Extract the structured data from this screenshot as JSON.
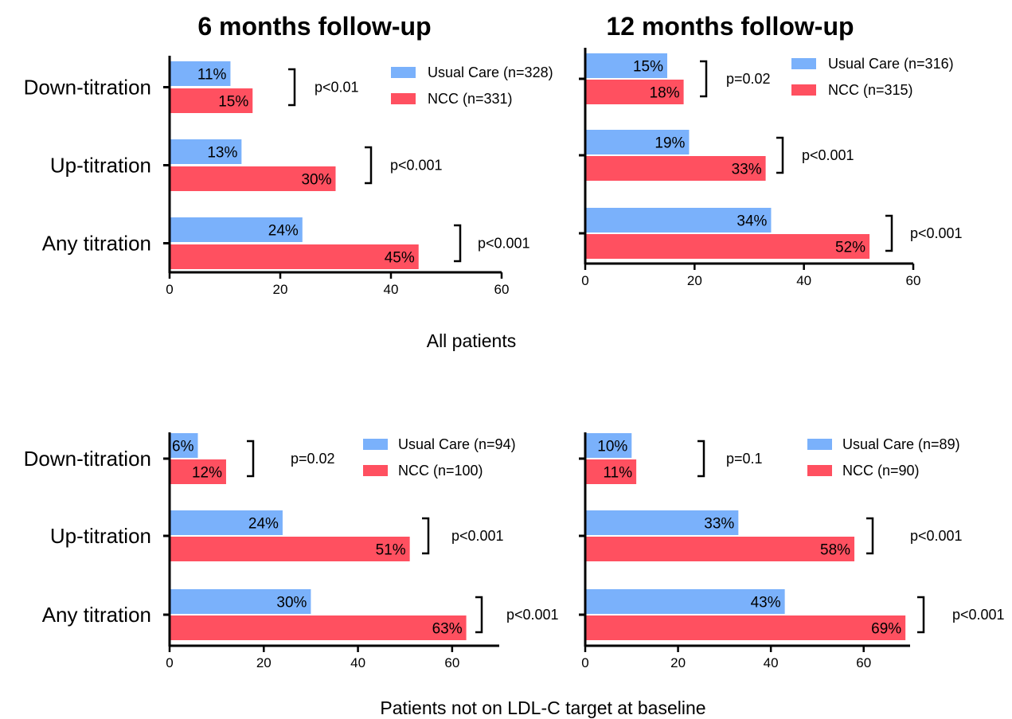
{
  "colors": {
    "usual_care": "#7ab1fb",
    "ncc": "#ff5060",
    "axis": "#000000"
  },
  "section_labels": {
    "top": "All patients",
    "bottom": "Patients not on LDL-C target at baseline"
  },
  "chart_data": [
    {
      "type": "bar",
      "orientation": "horizontal",
      "title": "6 months follow-up",
      "categories": [
        "Down-titration",
        "Up-titration",
        "Any titration"
      ],
      "series": [
        {
          "name": "Usual Care (n=328)",
          "values": [
            11,
            13,
            24
          ],
          "labels": [
            "11%",
            "13%",
            "24%"
          ]
        },
        {
          "name": "NCC (n=331)",
          "values": [
            15,
            30,
            45
          ],
          "labels": [
            "15%",
            "30%",
            "45%"
          ]
        }
      ],
      "p_values": [
        "p<0.01",
        "p<0.001",
        "p<0.001"
      ],
      "xlim": [
        0,
        60
      ],
      "xticks": [
        0,
        20,
        40,
        60
      ],
      "legend_position": "top-right"
    },
    {
      "type": "bar",
      "orientation": "horizontal",
      "title": "12 months follow-up",
      "categories": [
        "Down-titration",
        "Up-titration",
        "Any titration"
      ],
      "series": [
        {
          "name": "Usual Care (n=316)",
          "values": [
            15,
            19,
            34
          ],
          "labels": [
            "15%",
            "19%",
            "34%"
          ]
        },
        {
          "name": "NCC (n=315)",
          "values": [
            18,
            33,
            52
          ],
          "labels": [
            "18%",
            "33%",
            "52%"
          ]
        }
      ],
      "p_values": [
        "p=0.02",
        "p<0.001",
        "p<0.001"
      ],
      "xlim": [
        0,
        60
      ],
      "xticks": [
        0,
        20,
        40,
        60
      ],
      "legend_position": "top-right"
    },
    {
      "type": "bar",
      "orientation": "horizontal",
      "title": "",
      "categories": [
        "Down-titration",
        "Up-titration",
        "Any titration"
      ],
      "series": [
        {
          "name": "Usual Care (n=94)",
          "values": [
            6,
            24,
            30
          ],
          "labels": [
            "6%",
            "24%",
            "30%"
          ]
        },
        {
          "name": "NCC (n=100)",
          "values": [
            12,
            51,
            63
          ],
          "labels": [
            "12%",
            "51%",
            "63%"
          ]
        }
      ],
      "p_values": [
        "p=0.02",
        "p<0.001",
        "p<0.001"
      ],
      "xlim": [
        0,
        70
      ],
      "xticks": [
        0,
        20,
        40,
        60
      ],
      "legend_position": "top-right"
    },
    {
      "type": "bar",
      "orientation": "horizontal",
      "title": "",
      "categories": [
        "Down-titration",
        "Up-titration",
        "Any titration"
      ],
      "series": [
        {
          "name": "Usual Care (n=89)",
          "values": [
            10,
            33,
            43
          ],
          "labels": [
            "10%",
            "33%",
            "43%"
          ]
        },
        {
          "name": "NCC (n=90)",
          "values": [
            11,
            58,
            69
          ],
          "labels": [
            "11%",
            "58%",
            "69%"
          ]
        }
      ],
      "p_values": [
        "p=0.1",
        "p<0.001",
        "p<0.001"
      ],
      "xlim": [
        0,
        70
      ],
      "xticks": [
        0,
        20,
        40,
        60
      ],
      "legend_position": "top-right"
    }
  ]
}
